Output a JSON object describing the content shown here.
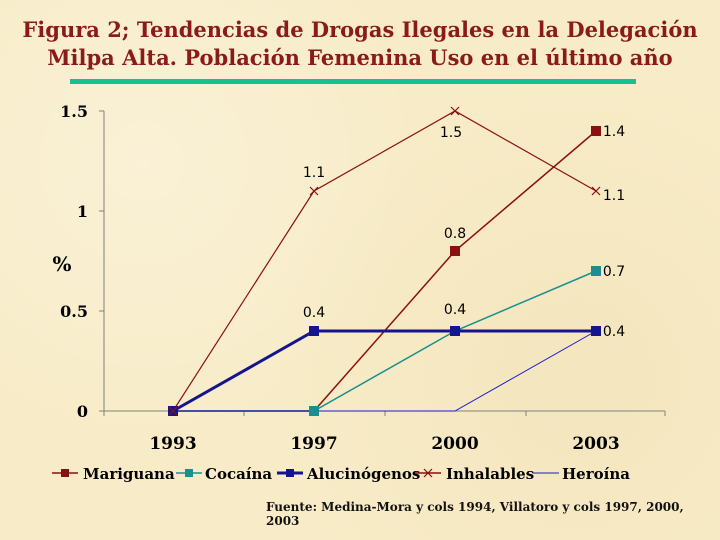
{
  "title_line1": "Figura 2; Tendencias de Drogas Ilegales en  la Delegación",
  "title_line2": "Milpa Alta. Población Femenina Uso en el último año",
  "source": "Fuente: Medina-Mora y cols 1994, Villatoro y cols 1997, 2000, 2003",
  "colors": {
    "title": "#8b1a1a",
    "rule": "#19c08f",
    "mariguana": "#8b1010",
    "cocaina": "#1b8f8f",
    "alucinogenos": "#14148f",
    "inhalables": "#8b1010",
    "heroina": "#1a1acc"
  },
  "chart_data": {
    "type": "line",
    "categories": [
      "1993",
      "1997",
      "2000",
      "2003"
    ],
    "ylabel": "%",
    "ylim": [
      0,
      1.5
    ],
    "yticks": [
      "0",
      "0.5",
      "1",
      "1.5"
    ],
    "grid": false,
    "legend_position": "bottom",
    "series": [
      {
        "name": "Mariguana",
        "key": "mariguana",
        "values": [
          0,
          0,
          0.8,
          1.4
        ],
        "marker": "square",
        "labels": [
          "",
          "",
          "0.8",
          "1.4"
        ]
      },
      {
        "name": "Cocaína",
        "key": "cocaina",
        "values": [
          0,
          0,
          0.4,
          0.7
        ],
        "marker": "square",
        "labels": [
          "",
          "",
          "",
          "0.7"
        ]
      },
      {
        "name": "Alucinógenos",
        "key": "alucinogenos",
        "values": [
          0,
          0.4,
          0.4,
          0.4
        ],
        "marker": "square",
        "labels": [
          "",
          "0.4",
          "0.4",
          "0.4"
        ]
      },
      {
        "name": "Inhalables",
        "key": "inhalables",
        "values": [
          0,
          1.1,
          1.5,
          1.1
        ],
        "marker": "x",
        "labels": [
          "",
          "1.1",
          "1.5",
          "1.1"
        ]
      },
      {
        "name": "Heroína",
        "key": "heroina",
        "values": [
          0,
          0,
          0,
          0.4
        ],
        "marker": "none",
        "labels": [
          "",
          "",
          "",
          ""
        ]
      }
    ]
  }
}
